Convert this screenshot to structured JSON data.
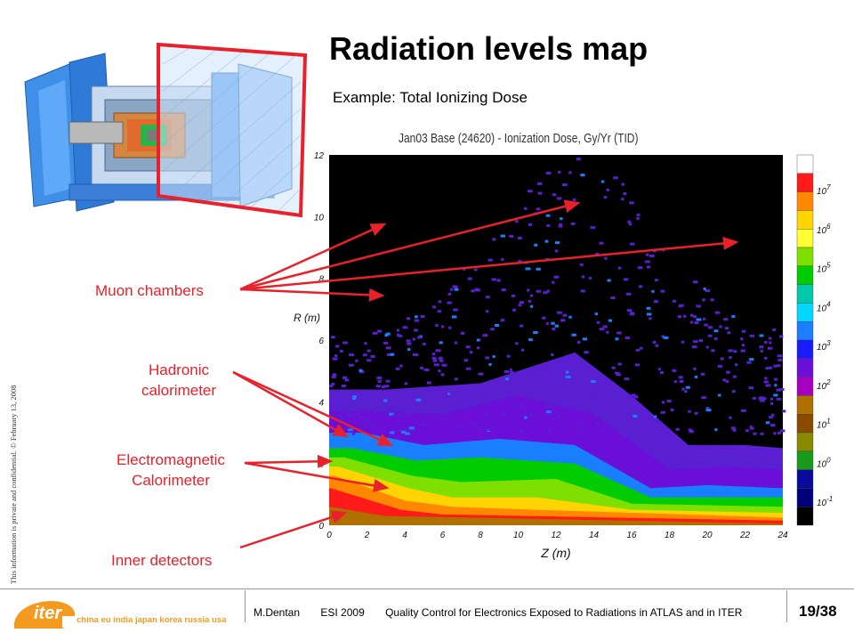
{
  "title": "Radiation levels map",
  "subtitle": "Example: Total Ionizing Dose",
  "labels": {
    "muon": "Muon chambers",
    "hadronic_1": "Hadronic",
    "hadronic_2": "calorimeter",
    "em_1": "Electromagnetic",
    "em_2": "Calorimeter",
    "inner": "Inner detectors"
  },
  "rotated_note": "This information is private and confidential. © February 13, 2008",
  "footer": {
    "author": "M.Dentan",
    "event": "ESI 2009",
    "talk": "Quality Control for Electronics Exposed to Radiations in ATLAS and in ITER",
    "page": "19/38",
    "logo_word": "iter",
    "logo_tagline": "china eu india japan korea russia usa"
  },
  "chart_data": {
    "type": "heatmap",
    "title": "Jan03 Base (24620) - Ionization Dose, Gy/Yr (TID)",
    "xlabel": "Z (m)",
    "ylabel": "R (m)",
    "xlim": [
      0,
      24
    ],
    "ylim": [
      0,
      12
    ],
    "x_ticks": [
      "0",
      "2",
      "4",
      "6",
      "8",
      "10",
      "12",
      "14",
      "16",
      "18",
      "20",
      "22",
      "24"
    ],
    "y_ticks": [
      "0",
      "2",
      "4",
      "6",
      "8",
      "10",
      "12"
    ],
    "colorbar_labels": [
      "10^7",
      "10^6",
      "10^5",
      "10^4",
      "10^3",
      "10^2",
      "10^1",
      "10^0",
      "10^-1"
    ],
    "colorbar_colors": [
      "#ffffff",
      "#ff1a1a",
      "#ff8800",
      "#ffd400",
      "#ffff33",
      "#7fe000",
      "#00cc00",
      "#00c8a8",
      "#00d8ff",
      "#1a7fff",
      "#1a1aff",
      "#6a0ed8",
      "#a600c0",
      "#b07000",
      "#8a4b00",
      "#8a8a00",
      "#1a9a1a",
      "#0a0a9a",
      "#00007a",
      "#000000"
    ]
  },
  "colors": {
    "title": "#000000",
    "annotation": "#e8212a",
    "logo_orange": "#f39a1f"
  }
}
